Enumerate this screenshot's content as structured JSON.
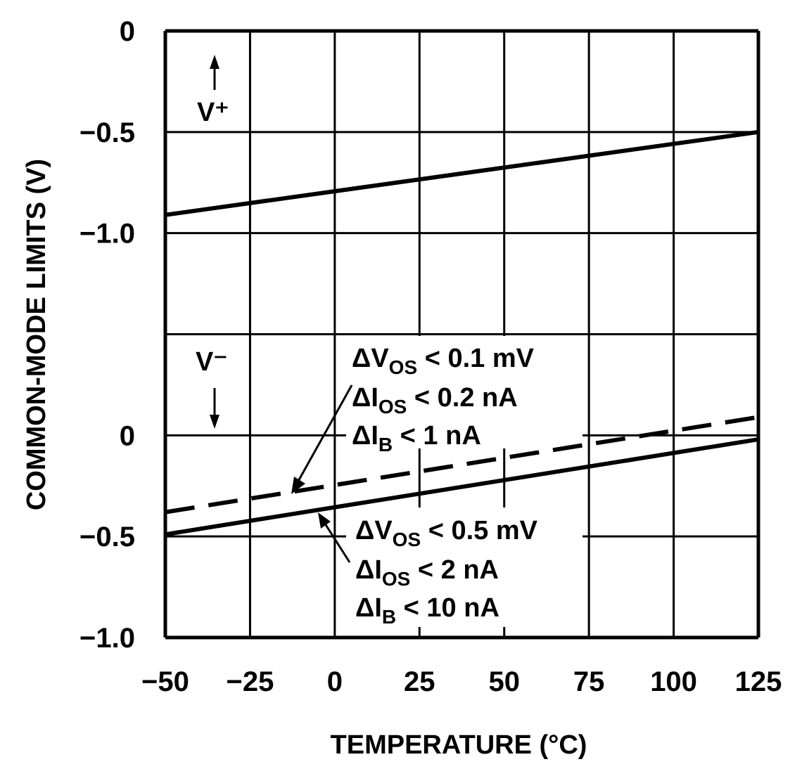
{
  "chart_data": {
    "type": "line",
    "xlabel": "TEMPERATURE (°C)",
    "ylabel": "COMMON-MODE LIMITS (V)",
    "xlim": [
      -50,
      125
    ],
    "x_ticks": [
      "-50",
      "-25",
      "0",
      "25",
      "50",
      "75",
      "100",
      "125"
    ],
    "x_tick_values": [
      -50,
      -25,
      0,
      25,
      50,
      75,
      100,
      125
    ],
    "y_sections": [
      {
        "reference": "V+",
        "ylim": [
          -1.0,
          0
        ],
        "ticks": [
          "0",
          "-0.5",
          "-1.0"
        ],
        "label": "V⁺",
        "arrow": "up"
      },
      {
        "reference": "V-",
        "ylim": [
          -1.0,
          0.5
        ],
        "ticks": [
          "0",
          "-0.5",
          "-1.0"
        ],
        "label": "V⁻",
        "arrow": "down"
      }
    ],
    "grid": true,
    "colors": {
      "line": "#000000",
      "background": "#ffffff"
    },
    "series": [
      {
        "reference": "V+",
        "style": "solid",
        "x": [
          -50,
          125
        ],
        "y": [
          -0.91,
          -0.5
        ]
      },
      {
        "reference": "V-",
        "style": "dashed",
        "x": [
          -50,
          125
        ],
        "y": [
          -0.38,
          0.09
        ]
      },
      {
        "reference": "V-",
        "style": "solid",
        "x": [
          -50,
          125
        ],
        "y": [
          -0.49,
          -0.02
        ]
      }
    ],
    "annotations": [
      {
        "target": "dashed",
        "lines": [
          {
            "pre": "ΔV",
            "sub": "OS",
            "post": " < 0.1 mV"
          },
          {
            "pre": "ΔI",
            "sub": "OS",
            "post": " < 0.2 nA"
          },
          {
            "pre": "ΔI",
            "sub": "B",
            "post": " < 1 nA"
          }
        ]
      },
      {
        "target": "solid",
        "lines": [
          {
            "pre": "ΔV",
            "sub": "OS",
            "post": " < 0.5 mV"
          },
          {
            "pre": "ΔI",
            "sub": "OS",
            "post": " < 2 nA"
          },
          {
            "pre": "ΔI",
            "sub": "B",
            "post": " < 10 nA"
          }
        ]
      }
    ]
  }
}
